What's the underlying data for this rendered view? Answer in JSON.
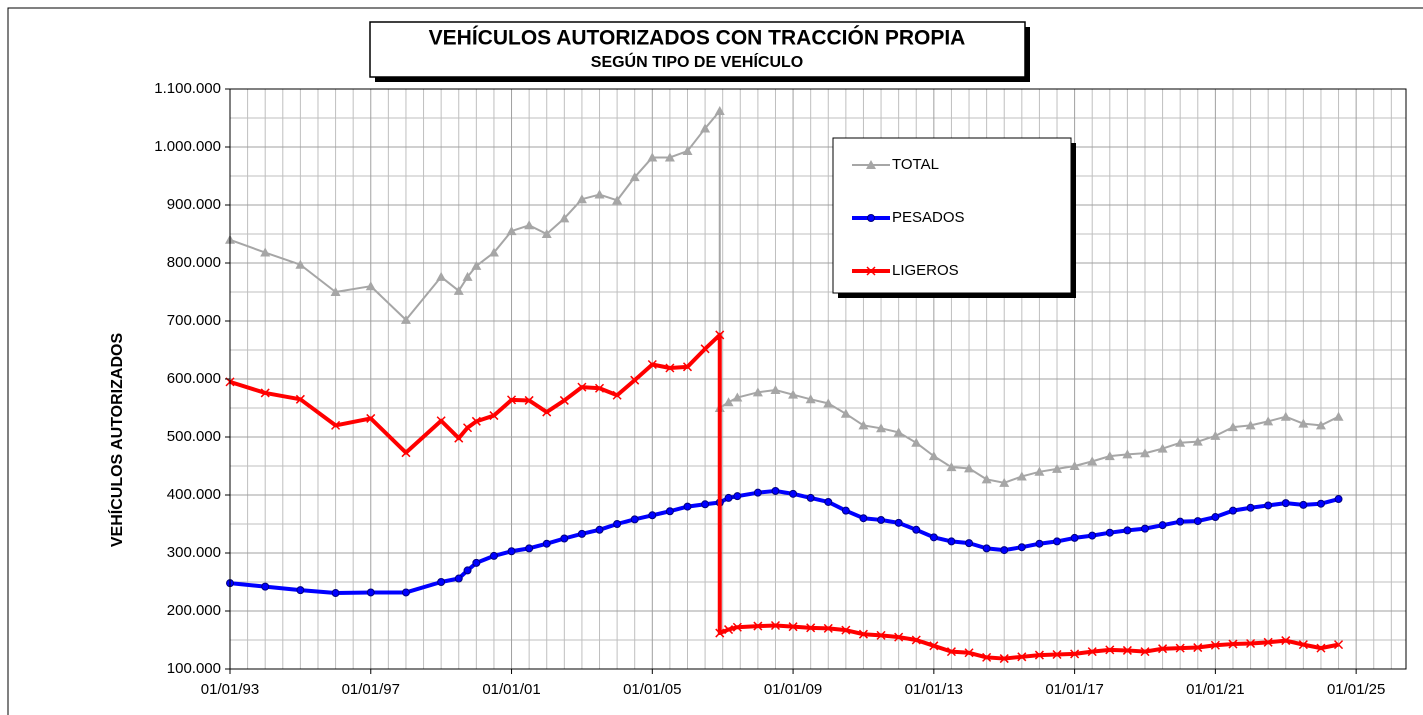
{
  "chart_data": {
    "type": "line",
    "title": "VEHÍCULOS AUTORIZADOS CON TRACCIÓN PROPIA",
    "subtitle": "SEGÚN TIPO DE VEHÍCULO",
    "y_label": "VEHÍCULOS  AUTORIZADOS",
    "x": [
      "01/01/93",
      "01/01/94",
      "01/01/95",
      "01/01/96",
      "01/01/97",
      "01/01/98",
      "01/01/99",
      "01/07/99",
      "01/10/99",
      "01/01/00",
      "01/07/00",
      "01/01/01",
      "01/07/01",
      "01/01/02",
      "01/07/02",
      "01/01/03",
      "01/07/03",
      "01/01/04",
      "01/07/04",
      "01/01/05",
      "01/07/05",
      "01/01/06",
      "01/07/06",
      "01/12/06",
      "01/12/06",
      "01/03/07",
      "01/06/07",
      "01/01/08",
      "01/07/08",
      "01/01/09",
      "01/07/09",
      "01/01/10",
      "01/07/10",
      "01/01/11",
      "01/07/11",
      "01/01/12",
      "01/07/12",
      "01/01/13",
      "01/07/13",
      "01/01/14",
      "01/07/14",
      "01/01/15",
      "01/07/15",
      "01/01/16",
      "01/07/16",
      "01/01/17",
      "01/07/17",
      "01/01/18",
      "01/07/18",
      "01/01/19",
      "01/07/19",
      "01/01/20",
      "01/07/20",
      "01/01/21",
      "01/07/21",
      "01/01/22",
      "01/07/22",
      "01/01/23",
      "01/07/23",
      "01/01/24",
      "01/07/24"
    ],
    "series": [
      {
        "name": "TOTAL",
        "color": "#a6a6a6",
        "marker": "triangle",
        "values": [
          840000,
          818000,
          797000,
          750000,
          760000,
          702000,
          776000,
          752000,
          776000,
          795000,
          818000,
          855000,
          865000,
          850000,
          877000,
          910000,
          918000,
          908000,
          948000,
          982000,
          982000,
          993000,
          1032000,
          1062000,
          550000,
          560000,
          568000,
          577000,
          581000,
          573000,
          565000,
          558000,
          540000,
          520000,
          515000,
          508000,
          490000,
          467000,
          448000,
          446000,
          427000,
          421000,
          432000,
          440000,
          445000,
          450000,
          458000,
          467000,
          470000,
          472000,
          480000,
          490000,
          492000,
          502000,
          517000,
          520000,
          527000,
          535000,
          523000,
          520000,
          535000
        ]
      },
      {
        "name": "PESADOS",
        "color": "#0000ff",
        "marker": "circle",
        "values": [
          248000,
          242000,
          236000,
          231000,
          232000,
          232000,
          250000,
          256000,
          270000,
          283000,
          295000,
          303000,
          308000,
          316000,
          325000,
          333000,
          340000,
          350000,
          358000,
          365000,
          372000,
          380000,
          384000,
          387000,
          387000,
          395000,
          398000,
          404000,
          407000,
          402000,
          395000,
          388000,
          373000,
          360000,
          357000,
          352000,
          340000,
          327000,
          320000,
          317000,
          308000,
          305000,
          310000,
          316000,
          320000,
          326000,
          330000,
          335000,
          339000,
          342000,
          348000,
          354000,
          355000,
          362000,
          373000,
          378000,
          382000,
          386000,
          383000,
          385000,
          393000
        ]
      },
      {
        "name": "LIGEROS",
        "color": "#ff0000",
        "marker": "x",
        "values": [
          595000,
          576000,
          565000,
          520000,
          532000,
          473000,
          528000,
          498000,
          516000,
          527000,
          537000,
          564000,
          563000,
          543000,
          563000,
          586000,
          584000,
          572000,
          598000,
          625000,
          619000,
          621000,
          652000,
          676000,
          162000,
          168000,
          172000,
          174000,
          175000,
          173000,
          171000,
          170000,
          167000,
          160000,
          158000,
          155000,
          150000,
          140000,
          130000,
          128000,
          120000,
          118000,
          121000,
          124000,
          125000,
          126000,
          130000,
          133000,
          132000,
          130000,
          135000,
          136000,
          137000,
          141000,
          143000,
          144000,
          146000,
          149000,
          142000,
          136000,
          142000
        ]
      }
    ],
    "xlim": [
      "01/01/93",
      "01/06/26"
    ],
    "xticks": [
      "01/01/93",
      "01/01/97",
      "01/01/01",
      "01/01/05",
      "01/01/09",
      "01/01/13",
      "01/01/17",
      "01/01/21",
      "01/01/25"
    ],
    "ylim": [
      100000,
      1100000
    ],
    "yticks": [
      {
        "value": 100000,
        "label": "100.000"
      },
      {
        "value": 200000,
        "label": "200.000"
      },
      {
        "value": 300000,
        "label": "300.000"
      },
      {
        "value": 400000,
        "label": "400.000"
      },
      {
        "value": 500000,
        "label": "500.000"
      },
      {
        "value": 600000,
        "label": "600.000"
      },
      {
        "value": 700000,
        "label": "700.000"
      },
      {
        "value": 800000,
        "label": "800.000"
      },
      {
        "value": 900000,
        "label": "900.000"
      },
      {
        "value": 1000000,
        "label": "1.000.000"
      },
      {
        "value": 1100000,
        "label": "1.100.000"
      }
    ],
    "grid": true,
    "legend": "upper right"
  }
}
